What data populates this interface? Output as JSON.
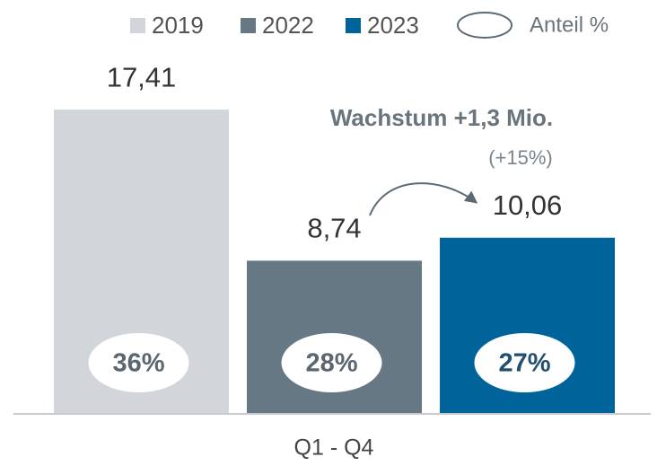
{
  "chart_data": {
    "type": "bar",
    "categories": [
      "Q1 - Q4"
    ],
    "series": [
      {
        "name": "2019",
        "color": "#d2d6da",
        "values": [
          17.41
        ],
        "value_labels": [
          "17,41"
        ],
        "share": [
          36
        ],
        "share_labels": [
          "36%"
        ]
      },
      {
        "name": "2022",
        "color": "#667883",
        "values": [
          8.74
        ],
        "value_labels": [
          "8,74"
        ],
        "share": [
          28
        ],
        "share_labels": [
          "28%"
        ]
      },
      {
        "name": "2023",
        "color": "#00649a",
        "values": [
          10.06
        ],
        "value_labels": [
          "10,06"
        ],
        "share": [
          27
        ],
        "share_labels": [
          "27%"
        ]
      }
    ],
    "share_legend": "Anteil %",
    "annotations": [
      "Wachstum +1,3 Mio.",
      "(+15%)"
    ]
  }
}
